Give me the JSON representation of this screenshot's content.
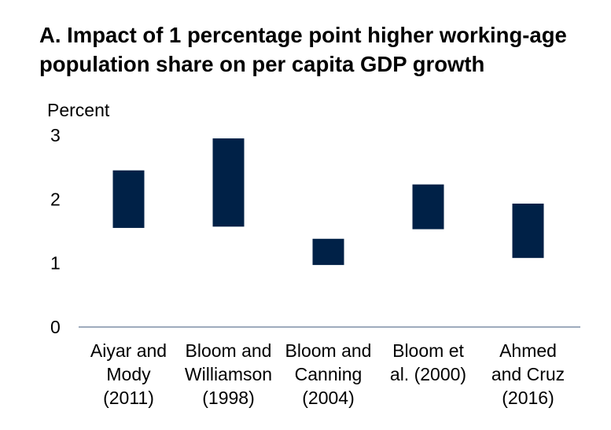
{
  "chart_data": {
    "type": "bar",
    "subtype": "floating-range",
    "title": "A. Impact of 1 percentage point higher working-age population share on per capita GDP growth",
    "ylabel": "Percent",
    "ylim": [
      0,
      3
    ],
    "yticks": [
      0,
      1,
      2,
      3
    ],
    "grid": false,
    "legend": "none",
    "bar_color": "#002147",
    "categories": [
      [
        "Aiyar and",
        "Mody",
        "(2011)"
      ],
      [
        "Bloom and",
        "Williamson",
        "(1998)"
      ],
      [
        "Bloom and",
        "Canning",
        "(2004)"
      ],
      [
        "Bloom et",
        "al. (2000)"
      ],
      [
        "Ahmed",
        "and Cruz",
        "(2016)"
      ]
    ],
    "ranges": [
      {
        "low": 1.55,
        "high": 2.45
      },
      {
        "low": 1.57,
        "high": 2.95
      },
      {
        "low": 0.97,
        "high": 1.38
      },
      {
        "low": 1.53,
        "high": 2.23
      },
      {
        "low": 1.08,
        "high": 1.93
      }
    ]
  }
}
